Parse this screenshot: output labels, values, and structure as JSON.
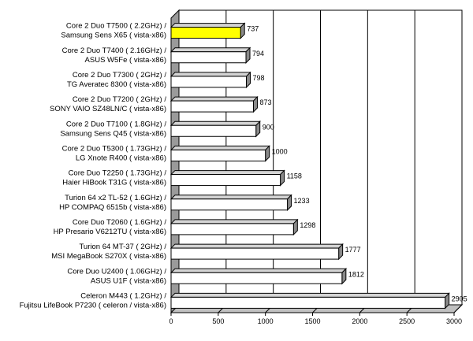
{
  "chart_data": {
    "type": "bar",
    "orientation": "horizontal",
    "title": "",
    "xlabel": "",
    "ylabel": "",
    "xlim": [
      0,
      3000
    ],
    "ticks": [
      0,
      500,
      1000,
      1500,
      2000,
      2500,
      3000
    ],
    "grid": true,
    "legend": "none",
    "categories": [
      [
        "Core 2 Duo T7500 ( 2.2GHz) /",
        "Samsung Sens X65 ( vista-x86)"
      ],
      [
        "Core 2 Duo T7400 ( 2.16GHz) /",
        "ASUS W5Fe ( vista-x86)"
      ],
      [
        "Core 2 Duo T7300 ( 2GHz) /",
        "TG Averatec 8300 ( vista-x86)"
      ],
      [
        "Core 2 Duo T7200 ( 2GHz) /",
        "SONY VAIO SZ48LN/C ( vista-x86)"
      ],
      [
        "Core 2 Duo T7100 ( 1.8GHz) /",
        "Samsung Sens Q45 ( vista-x86)"
      ],
      [
        "Core 2 Duo T5300 ( 1.73GHz) /",
        "LG Xnote R400 ( vista-x86)"
      ],
      [
        "Core Duo T2250 ( 1.73GHz) /",
        "Haier HiBook T31G ( vista-x86)"
      ],
      [
        "Turion 64 x2 TL-52 ( 1.6GHz) /",
        "HP COMPAQ 6515b ( vista-x86)"
      ],
      [
        "Core Duo T2060 ( 1.6GHz) /",
        "HP Presario V6212TU ( vista-x86)"
      ],
      [
        "Turion 64 MT-37 ( 2GHz) /",
        "MSI MegaBook S270X ( vista-x86)"
      ],
      [
        "Core Duo U2400 ( 1.06GHz) /",
        "ASUS U1F ( vista-x86)"
      ],
      [
        "Celeron M443 ( 1.2GHz) /",
        "Fujitsu LifeBook P7230 ( celeron / vista-x86)"
      ]
    ],
    "values": [
      737,
      794,
      798,
      873,
      900,
      1000,
      1158,
      1233,
      1298,
      1777,
      1812,
      2905
    ],
    "value_labels": [
      "737",
      "794",
      "798",
      "873",
      "900",
      "1000",
      "1158",
      "1233",
      "1298",
      "1777",
      "1812",
      "2905"
    ],
    "colors": {
      "highlight": "#ffff00",
      "bar": "#ffffff",
      "bar_outline": "#000000",
      "bar_top": "#d4d4d4",
      "bar_side": "#8a8a8a",
      "wall": "#9a9a9a",
      "floor": "#c0c0c0",
      "grid": "#000000"
    },
    "highlight_index": 0
  }
}
